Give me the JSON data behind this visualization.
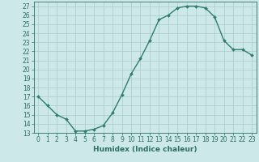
{
  "x": [
    0,
    1,
    2,
    3,
    4,
    5,
    6,
    7,
    8,
    9,
    10,
    11,
    12,
    13,
    14,
    15,
    16,
    17,
    18,
    19,
    20,
    21,
    22,
    23
  ],
  "y": [
    17,
    16,
    15,
    14.5,
    13.2,
    13.2,
    13.4,
    13.8,
    15.2,
    17.2,
    19.5,
    21.2,
    23.2,
    25.5,
    26.0,
    26.8,
    27.0,
    27.0,
    26.8,
    25.8,
    23.2,
    22.2,
    22.2,
    21.6
  ],
  "line_color": "#2e7d6e",
  "marker": "D",
  "markersize": 2.0,
  "linewidth": 1.0,
  "bg_color": "#cce8e8",
  "grid_color": "#aacccc",
  "xlabel": "Humidex (Indice chaleur)",
  "xlim": [
    -0.5,
    23.5
  ],
  "ylim": [
    13,
    27.5
  ],
  "yticks": [
    13,
    14,
    15,
    16,
    17,
    18,
    19,
    20,
    21,
    22,
    23,
    24,
    25,
    26,
    27
  ],
  "xticks": [
    0,
    1,
    2,
    3,
    4,
    5,
    6,
    7,
    8,
    9,
    10,
    11,
    12,
    13,
    14,
    15,
    16,
    17,
    18,
    19,
    20,
    21,
    22,
    23
  ],
  "tick_fontsize": 5.5,
  "xlabel_fontsize": 6.5,
  "tick_color": "#2e6e64",
  "label_color": "#2e6e64",
  "spine_color": "#2e6e64"
}
